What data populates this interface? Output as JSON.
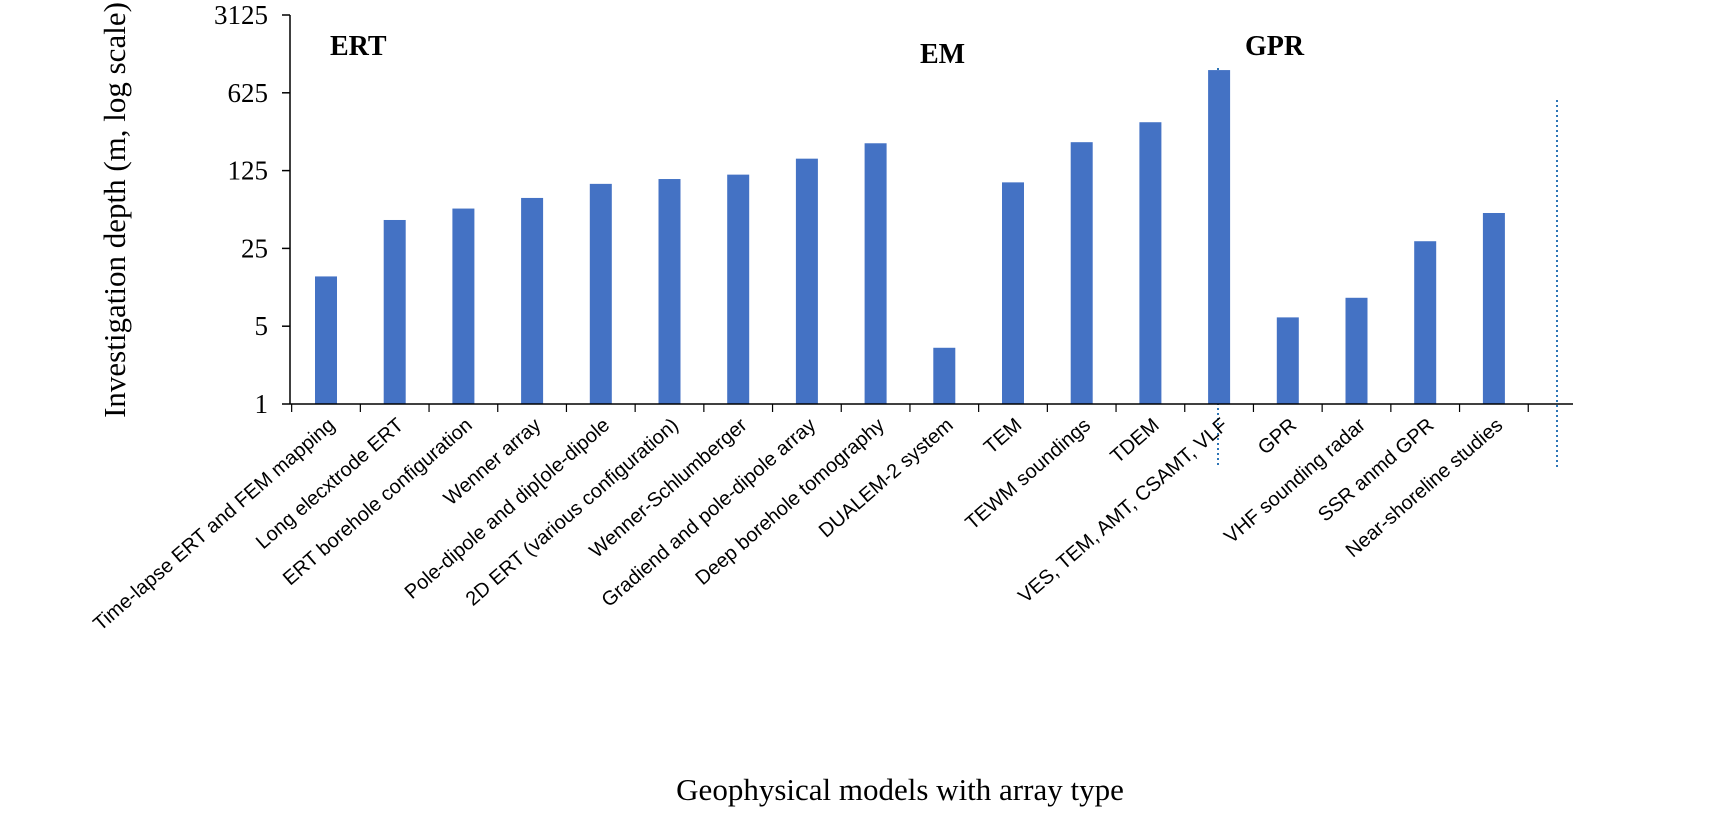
{
  "chart_data": {
    "type": "bar",
    "title": "",
    "xlabel": "Geophysical models with array type",
    "ylabel": "Investigation depth (m, log scale)",
    "yscale": "log",
    "ylim": [
      1,
      3125
    ],
    "yticks": [
      "1",
      "5",
      "25",
      "125",
      "625",
      "3125"
    ],
    "grid": false,
    "legend": "none",
    "bar_color": "#4472C4",
    "divider_color": "#2E75B6",
    "groups": [
      {
        "label": "ERT",
        "start": 0,
        "end": 8
      },
      {
        "label": "EM",
        "start": 9,
        "end": 13
      },
      {
        "label": "GPR",
        "start": 14,
        "end": 17
      }
    ],
    "categories": [
      "Time-lapse ERT and FEM mapping",
      "Long elecxtrode ERT",
      "ERT borehole configuration",
      "Wenner array",
      "Pole-dipole and dip[ole-dipole",
      "2D ERT (various configuration)",
      "Wenner-Schlumberger",
      "Gradiend and pole-dipole array",
      "Deep borehole tomography",
      "DUALEM-2 system",
      "TEM",
      "TEWM soundings",
      "TDEM",
      "VES, TEM, AMT, CSAMT, VLF",
      "GPR",
      "VHF sounding radar",
      "SSR anmd GPR",
      "Near-shoreline studies"
    ],
    "values": [
      14,
      45,
      57,
      71,
      95,
      105,
      115,
      160,
      220,
      3.2,
      98,
      225,
      340,
      1000,
      6,
      9,
      29,
      52
    ]
  }
}
